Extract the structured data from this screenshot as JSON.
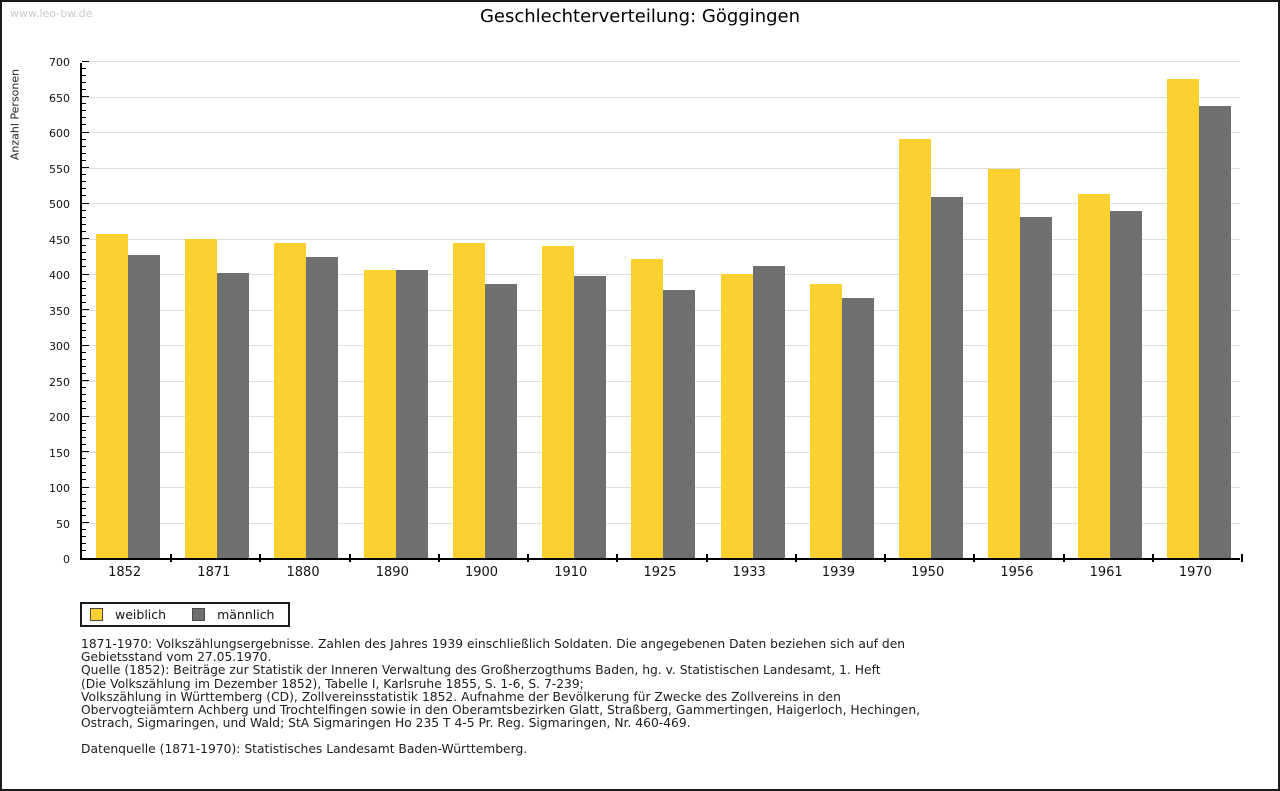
{
  "watermark": "www.leo-bw.de",
  "title": "Geschlechterverteilung: Göggingen",
  "chart_data": {
    "type": "bar",
    "title": "Geschlechterverteilung: Göggingen",
    "xlabel": "",
    "ylabel": "Anzahl Personen",
    "ylim": [
      0,
      700
    ],
    "ytick_step": 50,
    "minor_tick_step": 10,
    "grid": true,
    "legend_position": "bottom-left",
    "categories": [
      "1852",
      "1871",
      "1880",
      "1890",
      "1900",
      "1910",
      "1925",
      "1933",
      "1939",
      "1950",
      "1956",
      "1961",
      "1970"
    ],
    "series": [
      {
        "name": "weiblich",
        "color": "#FCD02E",
        "values": [
          456,
          450,
          443,
          406,
          443,
          440,
          421,
          400,
          386,
          590,
          548,
          513,
          674
        ]
      },
      {
        "name": "männlich",
        "color": "#6F6F6F",
        "values": [
          427,
          402,
          424,
          406,
          386,
          397,
          377,
          411,
          366,
          509,
          481,
          489,
          637
        ]
      }
    ]
  },
  "legend": {
    "items": [
      {
        "label": "weiblich",
        "color": "#FCD02E"
      },
      {
        "label": "männlich",
        "color": "#6F6F6F"
      }
    ]
  },
  "footnotes": {
    "lines": [
      "1871-1970: Volkszählungsergebnisse. Zahlen des Jahres 1939 einschließlich Soldaten. Die angegebenen Daten beziehen sich auf den",
      "Gebietsstand vom 27.05.1970.",
      "Quelle (1852): Beiträge zur Statistik der Inneren Verwaltung des Großherzogthums Baden, hg. v. Statistischen Landesamt, 1. Heft",
      "(Die Volkszählung im Dezember 1852), Tabelle I, Karlsruhe 1855, S. 1-6, S. 7-239;",
      "Volkszählung in Württemberg (CD), Zollvereinsstatistik 1852. Aufnahme der Bevölkerung für Zwecke des Zollvereins in den",
      "Obervogteiämtern Achberg und Trochtelfingen sowie in den Oberamtsbezirken Glatt, Straßberg, Gammertingen, Haigerloch, Hechingen,",
      "Ostrach, Sigmaringen, und Wald; StA Sigmaringen Ho 235 T 4-5 Pr. Reg. Sigmaringen, Nr. 460-469."
    ],
    "datasource": "Datenquelle (1871-1970): Statistisches Landesamt Baden-Württemberg."
  },
  "colors": {
    "gridline": "#DFDFDF",
    "axis": "#000000",
    "watermark": "#C9C9C9",
    "background": "#FFFFFF"
  }
}
